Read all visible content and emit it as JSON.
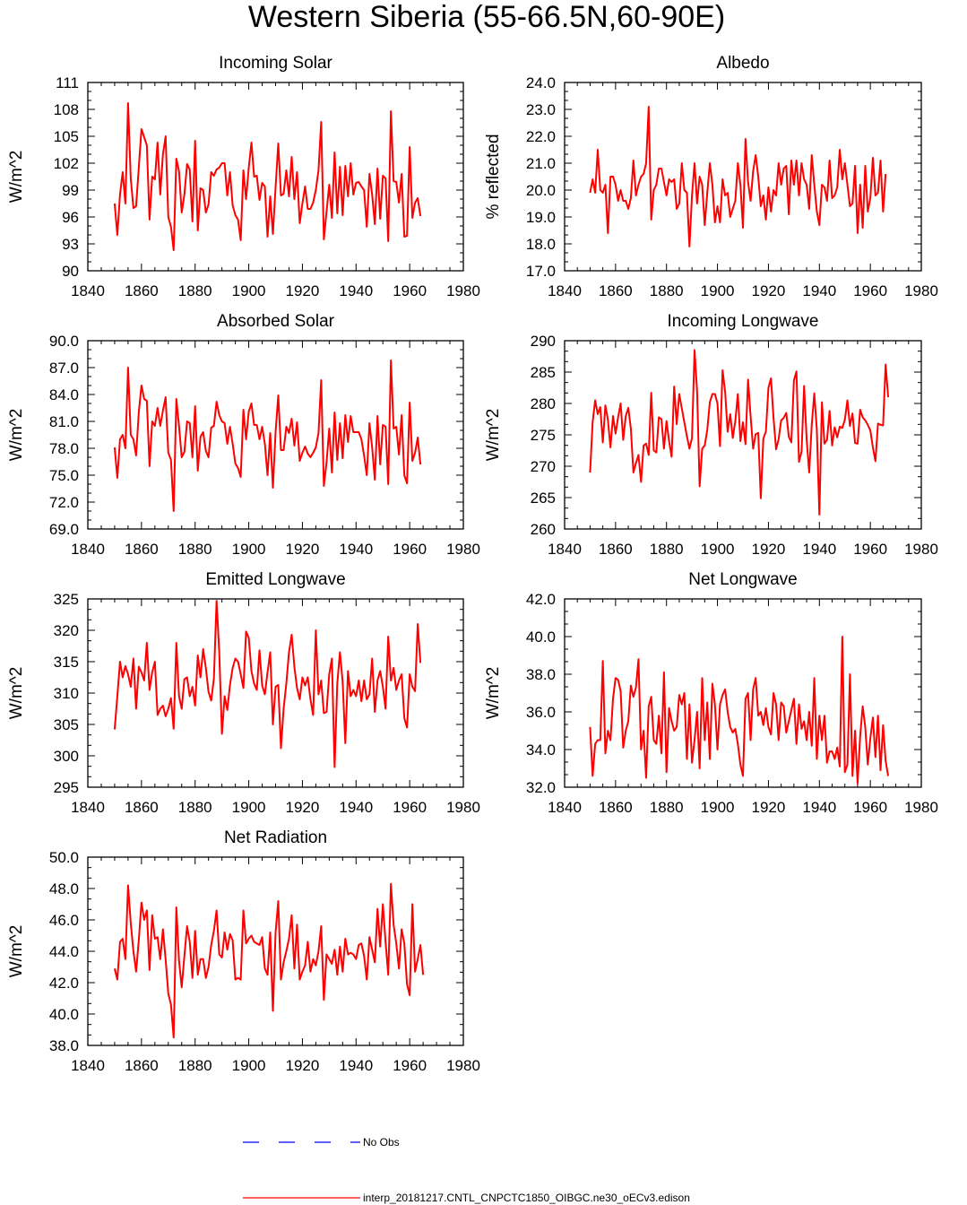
{
  "figure_title": "Western Siberia (55-66.5N,60-90E)",
  "legend": [
    {
      "label": "No Obs",
      "color": "#0000ff",
      "style": "dashed"
    },
    {
      "label": "interp_20181217.CNTL_CNPCTC1850_OIBGC.ne30_oECv3.edison",
      "color": "#ff0000",
      "style": "solid"
    }
  ],
  "chart_data": [
    {
      "type": "line",
      "title": "Incoming Solar",
      "xlabel": "",
      "ylabel": "W/m^2",
      "xlim": [
        1840,
        1980
      ],
      "ylim": [
        90,
        111
      ],
      "xticks": [
        1840,
        1860,
        1880,
        1900,
        1920,
        1940,
        1960,
        1980
      ],
      "yticks": [
        "90",
        "93",
        "96",
        "99",
        "102",
        "105",
        "108",
        "111"
      ],
      "series": [
        {
          "color": "#ff0000",
          "x_start": 1850,
          "values": [
            97.5,
            94,
            98.5,
            101,
            97.5,
            108.7,
            100.3,
            97,
            97.2,
            101.5,
            105.8,
            104.9,
            104,
            95.7,
            100.5,
            100.2,
            104.3,
            98.5,
            103,
            105,
            96,
            94.9,
            92.3,
            102.5,
            101.1,
            96.5,
            98.5,
            101.9,
            101.3,
            95.5,
            104.5,
            94.5,
            99.2,
            99,
            96.5,
            97.4,
            101,
            100.6,
            101.3,
            101.5,
            102,
            102,
            98.4,
            101,
            97.3,
            96.2,
            95.7,
            93.4,
            101.2,
            98,
            101.5,
            104.3,
            100.5,
            100.6,
            97.9,
            99.8,
            99.4,
            93.8,
            98.3,
            94.1,
            99.3,
            104.2,
            98.4,
            98.6,
            101.2,
            98.3,
            102.7,
            98,
            101,
            95.3,
            97.5,
            99.4,
            96.9,
            96.9,
            97.6,
            99,
            101.2,
            106.6,
            93.5,
            96.6,
            99.6,
            95.9,
            103.2,
            96.4,
            101.6,
            96.2,
            101.7,
            98.3,
            102,
            98.5,
            99.8,
            99.9,
            99.4,
            99,
            94.9,
            100.8,
            98.5,
            95.2,
            101.4,
            95.8,
            100.6,
            100.3,
            93.3,
            107.8,
            100,
            99.9,
            97.6,
            100.8,
            93.8,
            93.9,
            103.8,
            95.9,
            97.6,
            98.1,
            96.1
          ]
        }
      ]
    },
    {
      "type": "line",
      "title": "Albedo",
      "xlabel": "",
      "ylabel": "% reflected",
      "xlim": [
        1840,
        1980
      ],
      "ylim": [
        17,
        24
      ],
      "xticks": [
        1840,
        1860,
        1880,
        1900,
        1920,
        1940,
        1960,
        1980
      ],
      "yticks": [
        "17.0",
        "18.0",
        "19.0",
        "20.0",
        "21.0",
        "22.0",
        "23.0",
        "24.0"
      ],
      "series": [
        {
          "color": "#ff0000",
          "x_start": 1850,
          "values": [
            19.9,
            20.4,
            19.9,
            21.5,
            20,
            19.9,
            20.2,
            18.4,
            20.5,
            20.5,
            20.2,
            19.6,
            20,
            19.6,
            19.6,
            19.3,
            19.7,
            21.1,
            19.8,
            20.2,
            20.5,
            20.6,
            21,
            23.1,
            18.9,
            20,
            20.2,
            20.8,
            20.8,
            20.3,
            19.8,
            20.4,
            20.3,
            20.4,
            19.3,
            19.5,
            21,
            20,
            19.9,
            17.9,
            19.8,
            21,
            19.5,
            20.5,
            20.2,
            18.7,
            19.9,
            21,
            20.2,
            18.8,
            19.4,
            18.8,
            20.4,
            19.8,
            19.9,
            19,
            19.3,
            19.6,
            21,
            20.2,
            18.6,
            21.9,
            20.3,
            19.6,
            20.7,
            21.3,
            20.5,
            19.4,
            19.8,
            18.9,
            20.1,
            19.2,
            20,
            19.8,
            21,
            20.2,
            20.8,
            20.9,
            19.1,
            21.1,
            20.2,
            21.1,
            19.8,
            21,
            20.4,
            20.2,
            19.3,
            21.3,
            20.2,
            19.2,
            18.7,
            20.2,
            20.1,
            19.6,
            21.1,
            19.7,
            19.8,
            20.1,
            21.5,
            20.4,
            21,
            20.2,
            19.4,
            19.5,
            20.9,
            18.4,
            20.2,
            18.6,
            20.9,
            19.2,
            19.7,
            21.2,
            19.8,
            19.9,
            21.1,
            19.2,
            20.6
          ]
        }
      ]
    },
    {
      "type": "line",
      "title": "Absorbed Solar",
      "xlabel": "",
      "ylabel": "W/m^2",
      "xlim": [
        1840,
        1980
      ],
      "ylim": [
        69,
        90
      ],
      "xticks": [
        1840,
        1860,
        1880,
        1900,
        1920,
        1940,
        1960,
        1980
      ],
      "yticks": [
        "69.0",
        "72.0",
        "75.0",
        "78.0",
        "81.0",
        "84.0",
        "87.0",
        "90.0"
      ],
      "series": [
        {
          "color": "#ff0000",
          "x_start": 1850,
          "values": [
            78.1,
            74.7,
            79,
            79.5,
            78,
            87,
            79.5,
            79,
            77.2,
            82,
            85,
            83.5,
            83.3,
            76,
            81,
            80.5,
            82.5,
            80.5,
            82.2,
            83.7,
            77.5,
            76.7,
            71,
            83.5,
            80.5,
            77,
            77.6,
            81,
            80.8,
            77,
            82.7,
            75.5,
            79.3,
            79.8,
            77.7,
            77,
            80.3,
            80.5,
            83.2,
            81.7,
            81,
            80.8,
            78.5,
            80.4,
            78.5,
            76.3,
            75.8,
            74.8,
            82.3,
            79,
            82.1,
            83,
            80.6,
            80.6,
            79,
            80.4,
            78.5,
            75,
            79.7,
            73.6,
            79.8,
            83.9,
            77.8,
            77.8,
            80.4,
            79.7,
            81.3,
            78.3,
            80.9,
            76.6,
            77.5,
            78.2,
            77.4,
            77,
            77.5,
            78.1,
            79.7,
            85.6,
            73.8,
            76.4,
            80.2,
            75.3,
            82,
            76.7,
            80.8,
            76.9,
            81.7,
            78.7,
            81.6,
            79.8,
            79.8,
            79.8,
            79,
            77.2,
            75,
            80.8,
            78.1,
            74.5,
            81.6,
            76.2,
            80.6,
            80.4,
            74,
            87.8,
            80.2,
            80.4,
            77.3,
            81.7,
            75,
            74.1,
            83.1,
            76.6,
            77.5,
            79.2,
            76.2
          ]
        }
      ]
    },
    {
      "type": "line",
      "title": "Incoming Longwave",
      "xlabel": "",
      "ylabel": "W/m^2",
      "xlim": [
        1840,
        1980
      ],
      "ylim": [
        260,
        290
      ],
      "xticks": [
        1840,
        1860,
        1880,
        1900,
        1920,
        1940,
        1960,
        1980
      ],
      "yticks": [
        "260",
        "265",
        "270",
        "275",
        "280",
        "285",
        "290"
      ],
      "series": [
        {
          "color": "#ff0000",
          "x_start": 1850,
          "values": [
            269,
            277,
            280.5,
            278.3,
            279.4,
            273.8,
            279.7,
            277.4,
            273,
            278,
            275.2,
            277.8,
            280,
            274.2,
            278,
            279.3,
            276,
            269,
            270.5,
            271.8,
            267.5,
            273.3,
            273.6,
            271.8,
            281.7,
            272.5,
            272.2,
            277.8,
            277.5,
            272.8,
            277.2,
            274,
            271.5,
            282.7,
            276.7,
            281.5,
            279.2,
            277,
            274.8,
            272.8,
            274.5,
            288.5,
            282,
            266.8,
            272.8,
            273.3,
            275.8,
            280.2,
            281.5,
            281.5,
            280,
            273.2,
            285.3,
            281.9,
            275.5,
            278.3,
            274.5,
            277.2,
            281.5,
            274,
            277,
            273.5,
            283.8,
            278,
            272.8,
            275.1,
            275.3,
            264.9,
            274.4,
            275.5,
            282.5,
            284,
            277.7,
            272.7,
            274.3,
            277.3,
            277.7,
            278.5,
            274.7,
            273.8,
            283.7,
            285.1,
            270.7,
            272.3,
            282.8,
            274.3,
            269,
            276.6,
            281.6,
            275.8,
            262.3,
            280.2,
            273.6,
            274.2,
            278.8,
            273.3,
            276.2,
            274.6,
            276.3,
            276.1,
            277.4,
            280.5,
            276.4,
            278.4,
            273.7,
            273.6,
            279,
            277.8,
            277.3,
            276.6,
            275.7,
            273,
            270.8,
            276.8,
            276.6,
            276.5,
            286.2,
            281
          ]
        }
      ]
    },
    {
      "type": "line",
      "title": "Emitted Longwave",
      "xlabel": "",
      "ylabel": "W/m^2",
      "xlim": [
        1840,
        1980
      ],
      "ylim": [
        295,
        325
      ],
      "xticks": [
        1840,
        1860,
        1880,
        1900,
        1920,
        1940,
        1960,
        1980
      ],
      "yticks": [
        "295",
        "300",
        "305",
        "310",
        "315",
        "320",
        "325"
      ],
      "series": [
        {
          "color": "#ff0000",
          "x_start": 1850,
          "values": [
            304.2,
            309.5,
            315,
            312.5,
            314.3,
            313,
            311,
            315.5,
            307.5,
            314.2,
            313.3,
            312,
            318,
            310.5,
            313.3,
            315,
            306.5,
            307.5,
            308,
            306.3,
            307.5,
            309.2,
            304.3,
            318,
            309.5,
            307.5,
            312.2,
            312.5,
            309.5,
            311,
            308,
            316,
            312.5,
            317,
            314,
            310.2,
            308.8,
            312.3,
            324.7,
            316.5,
            303.5,
            309.5,
            307.3,
            311.3,
            314,
            315.5,
            315,
            313,
            310.8,
            319.8,
            318.8,
            313.5,
            311.5,
            310.5,
            316.8,
            311.2,
            309.8,
            313.3,
            316.5,
            305,
            311,
            311.3,
            301.2,
            307.5,
            311.5,
            316.5,
            319.3,
            314.2,
            310.8,
            309,
            312.5,
            311.2,
            312.5,
            309,
            306.5,
            320,
            309.8,
            312,
            306.8,
            307,
            313,
            315.5,
            298.2,
            311.5,
            316.5,
            311.8,
            302,
            313.5,
            309.5,
            310.5,
            309.5,
            312,
            308.7,
            312,
            309,
            309.8,
            315.5,
            307,
            312,
            313.5,
            311,
            307.5,
            319,
            312,
            314,
            310.5,
            312,
            313,
            306,
            304.5,
            313,
            311,
            310.3,
            321,
            314.8
          ]
        }
      ]
    },
    {
      "type": "line",
      "title": "Net Longwave",
      "xlabel": "",
      "ylabel": "W/m^2",
      "xlim": [
        1840,
        1980
      ],
      "ylim": [
        32,
        42
      ],
      "xticks": [
        1840,
        1860,
        1880,
        1900,
        1920,
        1940,
        1960,
        1980
      ],
      "yticks": [
        "32.0",
        "34.0",
        "36.0",
        "38.0",
        "40.0",
        "42.0"
      ],
      "series": [
        {
          "color": "#ff0000",
          "x_start": 1850,
          "values": [
            35.2,
            32.6,
            34.3,
            34.5,
            34.5,
            38.7,
            33.8,
            35,
            34.5,
            36.7,
            37.8,
            37.7,
            37.1,
            34.1,
            35,
            35.5,
            37.4,
            36.8,
            37.3,
            38.8,
            34,
            35,
            32.5,
            36.3,
            36.8,
            34.5,
            34.3,
            35.8,
            33.8,
            38.1,
            32.8,
            36.2,
            35.5,
            35,
            35.2,
            36.9,
            36.4,
            37,
            33.5,
            36.4,
            33.3,
            34.5,
            36,
            33,
            37.8,
            34.5,
            36.5,
            33.5,
            37.5,
            36.4,
            34,
            36.4,
            36.9,
            37.2,
            36,
            35.2,
            34.9,
            35.1,
            34.3,
            33.2,
            32.6,
            36.7,
            37,
            34.5,
            37.2,
            37.8,
            35.8,
            36,
            35.3,
            36.2,
            35.2,
            34.8,
            37,
            36.4,
            34.5,
            36.5,
            36.3,
            34.9,
            35.5,
            36.1,
            36.7,
            34.3,
            36.4,
            35.1,
            35.5,
            34.5,
            36,
            34.2,
            37.8,
            33.5,
            35.8,
            34.5,
            35.8,
            33.3,
            33.9,
            33.9,
            33.5,
            34.1,
            33.1,
            40,
            32.8,
            33.2,
            38,
            32.6,
            35,
            32.2,
            34.7,
            36.3,
            35.2,
            33.2,
            34.6,
            35.7,
            33.6,
            35.8,
            32.9,
            35.3,
            33.4,
            32.6
          ]
        }
      ]
    },
    {
      "type": "line",
      "title": "Net Radiation",
      "xlabel": "",
      "ylabel": "W/m^2",
      "xlim": [
        1840,
        1980
      ],
      "ylim": [
        38,
        50
      ],
      "xticks": [
        1840,
        1860,
        1880,
        1900,
        1920,
        1940,
        1960,
        1980
      ],
      "yticks": [
        "38.0",
        "40.0",
        "42.0",
        "44.0",
        "46.0",
        "48.0",
        "50.0"
      ],
      "series": [
        {
          "color": "#ff0000",
          "x_start": 1850,
          "values": [
            42.9,
            42.2,
            44.6,
            44.8,
            43.5,
            48.2,
            45.8,
            44,
            42.7,
            44.7,
            47.1,
            46,
            46.6,
            42.8,
            46.3,
            44.8,
            44.9,
            43.5,
            45.4,
            43.5,
            41.3,
            40.6,
            38.5,
            46.8,
            43.4,
            41.7,
            43.7,
            45.6,
            44.6,
            42.3,
            45.3,
            42.5,
            43.5,
            43.5,
            42.3,
            43,
            44.4,
            45.3,
            46.6,
            43.8,
            43.6,
            45.2,
            44.1,
            45.1,
            44.7,
            42.2,
            42.3,
            42.2,
            46.6,
            44.5,
            44.8,
            45,
            44.6,
            44.5,
            44.4,
            44.9,
            42.9,
            42.5,
            45.2,
            40.2,
            45.2,
            47.2,
            42.2,
            43.3,
            44,
            44.8,
            46.3,
            42.9,
            45.7,
            42.2,
            42.7,
            43.1,
            44.6,
            42.7,
            43.5,
            43.1,
            44,
            45.6,
            40.9,
            43.8,
            43.5,
            43.2,
            44.1,
            42.5,
            44.3,
            42.7,
            44.8,
            43.8,
            43.9,
            43.8,
            43.5,
            44.4,
            44.5,
            43.7,
            42.2,
            44.9,
            44.1,
            43.3,
            46.7,
            44.3,
            47,
            44.6,
            42.5,
            48.3,
            45.7,
            44.5,
            42.9,
            45.4,
            44.5,
            41.9,
            41.2,
            47,
            42.7,
            43.5,
            44.4,
            42.5
          ]
        }
      ]
    }
  ]
}
